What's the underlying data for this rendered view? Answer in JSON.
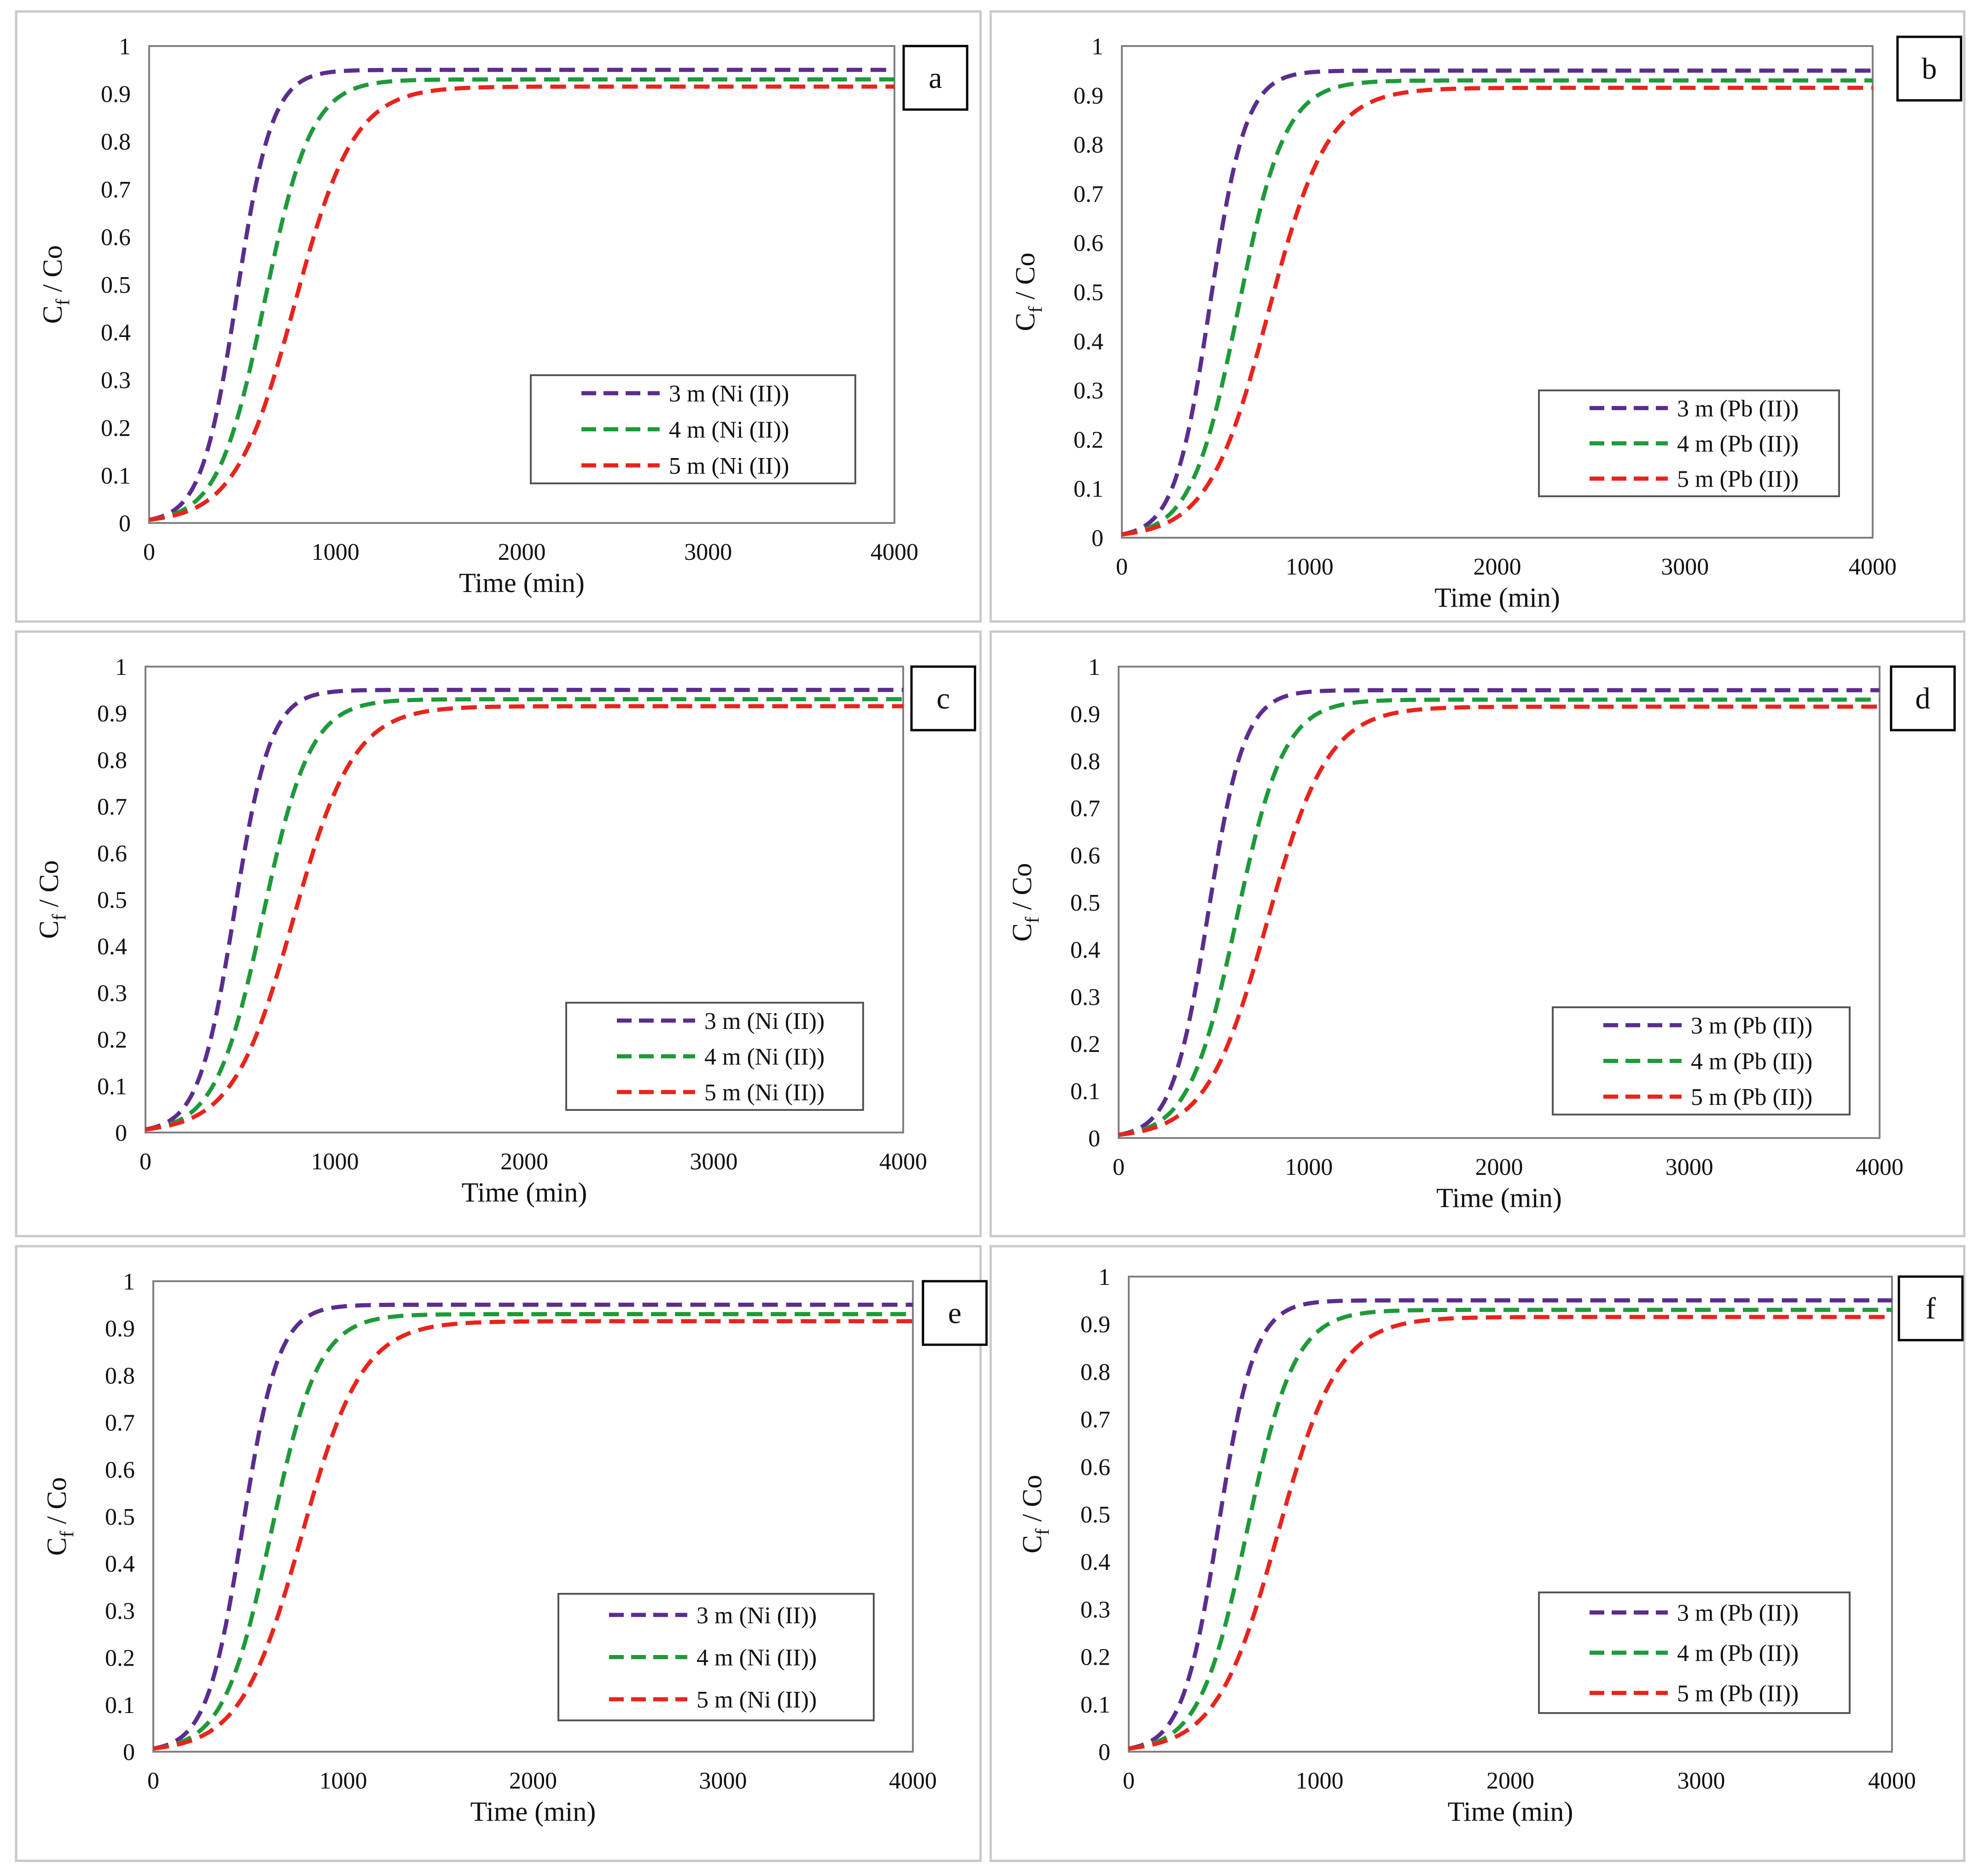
{
  "figure": {
    "description_visible": false
  },
  "chart_data": [
    {
      "panel": "a",
      "type": "line",
      "xlabel": "Time (min)",
      "ylabel": {
        "main": "C",
        "sub": "f",
        "rest": " / Co"
      },
      "xlim": [
        0,
        4000
      ],
      "ylim": [
        0,
        1
      ],
      "xticks": [
        "0",
        "1000",
        "2000",
        "3000",
        "4000"
      ],
      "yticks": [
        "0",
        "0.1",
        "0.2",
        "0.3",
        "0.4",
        "0.5",
        "0.6",
        "0.7",
        "0.8",
        "0.9",
        "1"
      ],
      "grid": false,
      "legend_position": "lower-right",
      "series": [
        {
          "name": "3 m (Ni (II))",
          "color": "#5b2d8e",
          "plateau": 0.95,
          "t50": 470,
          "width": 95,
          "x": [
            0,
            100,
            200,
            300,
            400,
            500,
            600,
            700,
            800,
            900,
            1000,
            1200,
            1500,
            2000,
            3000,
            4000
          ],
          "values": [
            0,
            0,
            0.01,
            0.15,
            0.37,
            0.57,
            0.73,
            0.84,
            0.91,
            0.93,
            0.94,
            0.95,
            0.95,
            0.95,
            0.95,
            0.95
          ]
        },
        {
          "name": "4 m (Ni (II))",
          "color": "#1e9a3a",
          "plateau": 0.93,
          "t50": 620,
          "width": 125,
          "x": [
            0,
            100,
            200,
            300,
            400,
            500,
            600,
            700,
            800,
            900,
            1000,
            1200,
            1500,
            2000,
            3000,
            4000
          ],
          "values": [
            0,
            0,
            0,
            0.05,
            0.15,
            0.31,
            0.48,
            0.62,
            0.73,
            0.81,
            0.86,
            0.91,
            0.93,
            0.93,
            0.93,
            0.93
          ]
        },
        {
          "name": "5 m (Ni (II))",
          "color": "#e8241c",
          "plateau": 0.915,
          "t50": 780,
          "width": 160,
          "x": [
            0,
            100,
            200,
            300,
            400,
            500,
            600,
            700,
            800,
            900,
            1000,
            1200,
            1500,
            2000,
            3000,
            4000
          ],
          "values": [
            0,
            0,
            0,
            0.01,
            0.05,
            0.13,
            0.26,
            0.41,
            0.55,
            0.66,
            0.74,
            0.84,
            0.9,
            0.915,
            0.915,
            0.915
          ]
        }
      ]
    },
    {
      "panel": "b",
      "type": "line",
      "xlabel": "Time (min)",
      "ylabel": {
        "main": "C",
        "sub": "f",
        "rest": " / Co"
      },
      "xlim": [
        0,
        4000
      ],
      "ylim": [
        0,
        1
      ],
      "xticks": [
        "0",
        "1000",
        "2000",
        "3000",
        "4000"
      ],
      "yticks": [
        "0",
        "0.1",
        "0.2",
        "0.3",
        "0.4",
        "0.5",
        "0.6",
        "0.7",
        "0.8",
        "0.9",
        "1"
      ],
      "grid": false,
      "legend_position": "lower-right",
      "series": [
        {
          "name": "3 m (Pb (II))",
          "color": "#5b2d8e",
          "plateau": 0.95,
          "t50": 470,
          "width": 95,
          "x": [
            0,
            100,
            200,
            300,
            400,
            500,
            600,
            700,
            800,
            900,
            1000,
            1200,
            1500,
            2000,
            3000,
            4000
          ],
          "values": [
            0,
            0,
            0.01,
            0.15,
            0.37,
            0.57,
            0.73,
            0.84,
            0.91,
            0.93,
            0.94,
            0.95,
            0.95,
            0.95,
            0.95,
            0.95
          ]
        },
        {
          "name": "4 m (Pb (II))",
          "color": "#1e9a3a",
          "plateau": 0.93,
          "t50": 620,
          "width": 125,
          "x": [
            0,
            100,
            200,
            300,
            400,
            500,
            600,
            700,
            800,
            900,
            1000,
            1200,
            1500,
            2000,
            3000,
            4000
          ],
          "values": [
            0,
            0,
            0,
            0.05,
            0.15,
            0.31,
            0.48,
            0.62,
            0.73,
            0.81,
            0.86,
            0.91,
            0.93,
            0.93,
            0.93,
            0.93
          ]
        },
        {
          "name": "5 m (Pb (II))",
          "color": "#e8241c",
          "plateau": 0.915,
          "t50": 780,
          "width": 160,
          "x": [
            0,
            100,
            200,
            300,
            400,
            500,
            600,
            700,
            800,
            900,
            1000,
            1200,
            1500,
            2000,
            3000,
            4000
          ],
          "values": [
            0,
            0,
            0,
            0.01,
            0.05,
            0.13,
            0.26,
            0.41,
            0.55,
            0.66,
            0.74,
            0.84,
            0.9,
            0.915,
            0.915,
            0.915
          ]
        }
      ]
    },
    {
      "panel": "c",
      "type": "line",
      "xlabel": "Time (min)",
      "ylabel": {
        "main": "C",
        "sub": "f",
        "rest": " / Co"
      },
      "xlim": [
        0,
        4000
      ],
      "ylim": [
        0,
        1
      ],
      "xticks": [
        "0",
        "1000",
        "2000",
        "3000",
        "4000"
      ],
      "yticks": [
        "0",
        "0.1",
        "0.2",
        "0.3",
        "0.4",
        "0.5",
        "0.6",
        "0.7",
        "0.8",
        "0.9",
        "1"
      ],
      "grid": false,
      "legend_position": "lower-right",
      "series": [
        {
          "name": "3 m (Ni (II))",
          "color": "#5b2d8e",
          "plateau": 0.95,
          "t50": 470,
          "width": 95,
          "x": [
            0,
            100,
            200,
            300,
            400,
            500,
            600,
            700,
            800,
            900,
            1000,
            1200,
            1500,
            2000,
            3000,
            4000
          ],
          "values": [
            0,
            0,
            0.01,
            0.15,
            0.37,
            0.57,
            0.73,
            0.84,
            0.91,
            0.93,
            0.94,
            0.95,
            0.95,
            0.95,
            0.95,
            0.95
          ]
        },
        {
          "name": "4 m (Ni (II))",
          "color": "#1e9a3a",
          "plateau": 0.93,
          "t50": 620,
          "width": 125,
          "x": [
            0,
            100,
            200,
            300,
            400,
            500,
            600,
            700,
            800,
            900,
            1000,
            1200,
            1500,
            2000,
            3000,
            4000
          ],
          "values": [
            0,
            0,
            0,
            0.05,
            0.15,
            0.31,
            0.48,
            0.62,
            0.73,
            0.81,
            0.86,
            0.91,
            0.93,
            0.93,
            0.93,
            0.93
          ]
        },
        {
          "name": "5 m (Ni (II))",
          "color": "#e8241c",
          "plateau": 0.915,
          "t50": 780,
          "width": 160,
          "x": [
            0,
            100,
            200,
            300,
            400,
            500,
            600,
            700,
            800,
            900,
            1000,
            1200,
            1500,
            2000,
            3000,
            4000
          ],
          "values": [
            0,
            0,
            0,
            0.01,
            0.05,
            0.13,
            0.26,
            0.41,
            0.55,
            0.66,
            0.74,
            0.84,
            0.9,
            0.915,
            0.915,
            0.915
          ]
        }
      ]
    },
    {
      "panel": "d",
      "type": "line",
      "xlabel": "Time (min)",
      "ylabel": {
        "main": "C",
        "sub": "f",
        "rest": " / Co"
      },
      "xlim": [
        0,
        4000
      ],
      "ylim": [
        0,
        1
      ],
      "xticks": [
        "0",
        "1000",
        "2000",
        "3000",
        "4000"
      ],
      "yticks": [
        "0",
        "0.1",
        "0.2",
        "0.3",
        "0.4",
        "0.5",
        "0.6",
        "0.7",
        "0.8",
        "0.9",
        "1"
      ],
      "grid": false,
      "legend_position": "lower-right",
      "series": [
        {
          "name": "3 m (Pb (II))",
          "color": "#5b2d8e",
          "plateau": 0.95,
          "t50": 470,
          "width": 95,
          "x": [
            0,
            100,
            200,
            300,
            400,
            500,
            600,
            700,
            800,
            900,
            1000,
            1200,
            1500,
            2000,
            3000,
            4000
          ],
          "values": [
            0,
            0,
            0.01,
            0.15,
            0.37,
            0.57,
            0.73,
            0.84,
            0.91,
            0.93,
            0.94,
            0.95,
            0.95,
            0.95,
            0.95,
            0.95
          ]
        },
        {
          "name": "4 m (Pb (II))",
          "color": "#1e9a3a",
          "plateau": 0.93,
          "t50": 620,
          "width": 125,
          "x": [
            0,
            100,
            200,
            300,
            400,
            500,
            600,
            700,
            800,
            900,
            1000,
            1200,
            1500,
            2000,
            3000,
            4000
          ],
          "values": [
            0,
            0,
            0,
            0.05,
            0.15,
            0.31,
            0.48,
            0.62,
            0.73,
            0.81,
            0.86,
            0.91,
            0.93,
            0.93,
            0.93,
            0.93
          ]
        },
        {
          "name": "5 m (Pb (II))",
          "color": "#e8241c",
          "plateau": 0.915,
          "t50": 780,
          "width": 160,
          "x": [
            0,
            100,
            200,
            300,
            400,
            500,
            600,
            700,
            800,
            900,
            1000,
            1200,
            1500,
            2000,
            3000,
            4000
          ],
          "values": [
            0,
            0,
            0,
            0.01,
            0.05,
            0.13,
            0.26,
            0.41,
            0.55,
            0.66,
            0.74,
            0.84,
            0.9,
            0.915,
            0.915,
            0.915
          ]
        }
      ]
    },
    {
      "panel": "e",
      "type": "line",
      "xlabel": "Time (min)",
      "ylabel": {
        "main": "C",
        "sub": "f",
        "rest": " / Co"
      },
      "xlim": [
        0,
        4000
      ],
      "ylim": [
        0,
        1
      ],
      "xticks": [
        "0",
        "1000",
        "2000",
        "3000",
        "4000"
      ],
      "yticks": [
        "0",
        "0.1",
        "0.2",
        "0.3",
        "0.4",
        "0.5",
        "0.6",
        "0.7",
        "0.8",
        "0.9",
        "1"
      ],
      "grid": false,
      "legend_position": "lower-right",
      "series": [
        {
          "name": "3 m (Ni (II))",
          "color": "#5b2d8e",
          "plateau": 0.95,
          "t50": 470,
          "width": 95,
          "x": [
            0,
            100,
            200,
            300,
            400,
            500,
            600,
            700,
            800,
            900,
            1000,
            1200,
            1500,
            2000,
            3000,
            4000
          ],
          "values": [
            0,
            0,
            0.01,
            0.15,
            0.37,
            0.57,
            0.73,
            0.84,
            0.91,
            0.93,
            0.94,
            0.95,
            0.95,
            0.95,
            0.95,
            0.95
          ]
        },
        {
          "name": "4 m (Ni (II))",
          "color": "#1e9a3a",
          "plateau": 0.93,
          "t50": 620,
          "width": 125,
          "x": [
            0,
            100,
            200,
            300,
            400,
            500,
            600,
            700,
            800,
            900,
            1000,
            1200,
            1500,
            2000,
            3000,
            4000
          ],
          "values": [
            0,
            0,
            0,
            0.05,
            0.15,
            0.31,
            0.48,
            0.62,
            0.73,
            0.81,
            0.86,
            0.91,
            0.93,
            0.93,
            0.93,
            0.93
          ]
        },
        {
          "name": "5 m (Ni (II))",
          "color": "#e8241c",
          "plateau": 0.915,
          "t50": 780,
          "width": 160,
          "x": [
            0,
            100,
            200,
            300,
            400,
            500,
            600,
            700,
            800,
            900,
            1000,
            1200,
            1500,
            2000,
            3000,
            4000
          ],
          "values": [
            0,
            0,
            0,
            0.01,
            0.05,
            0.13,
            0.26,
            0.41,
            0.55,
            0.66,
            0.74,
            0.84,
            0.9,
            0.915,
            0.915,
            0.915
          ]
        }
      ]
    },
    {
      "panel": "f",
      "type": "line",
      "xlabel": "Time (min)",
      "ylabel": {
        "main": "C",
        "sub": "f",
        "rest": " / Co"
      },
      "xlim": [
        0,
        4000
      ],
      "ylim": [
        0,
        1
      ],
      "xticks": [
        "0",
        "1000",
        "2000",
        "3000",
        "4000"
      ],
      "yticks": [
        "0",
        "0.1",
        "0.2",
        "0.3",
        "0.4",
        "0.5",
        "0.6",
        "0.7",
        "0.8",
        "0.9",
        "1"
      ],
      "grid": false,
      "legend_position": "lower-right",
      "series": [
        {
          "name": "3 m (Pb (II))",
          "color": "#5b2d8e",
          "plateau": 0.95,
          "t50": 470,
          "width": 95,
          "x": [
            0,
            100,
            200,
            300,
            400,
            500,
            600,
            700,
            800,
            900,
            1000,
            1200,
            1500,
            2000,
            3000,
            4000
          ],
          "values": [
            0,
            0,
            0.01,
            0.15,
            0.37,
            0.57,
            0.73,
            0.84,
            0.91,
            0.93,
            0.94,
            0.95,
            0.95,
            0.95,
            0.95,
            0.95
          ]
        },
        {
          "name": "4 m (Pb (II))",
          "color": "#1e9a3a",
          "plateau": 0.93,
          "t50": 620,
          "width": 125,
          "x": [
            0,
            100,
            200,
            300,
            400,
            500,
            600,
            700,
            800,
            900,
            1000,
            1200,
            1500,
            2000,
            3000,
            4000
          ],
          "values": [
            0,
            0,
            0,
            0.05,
            0.15,
            0.31,
            0.48,
            0.62,
            0.73,
            0.81,
            0.86,
            0.91,
            0.93,
            0.93,
            0.93,
            0.93
          ]
        },
        {
          "name": "5 m (Pb (II))",
          "color": "#e8241c",
          "plateau": 0.915,
          "t50": 780,
          "width": 160,
          "x": [
            0,
            100,
            200,
            300,
            400,
            500,
            600,
            700,
            800,
            900,
            1000,
            1200,
            1500,
            2000,
            3000,
            4000
          ],
          "values": [
            0,
            0,
            0,
            0.01,
            0.05,
            0.13,
            0.26,
            0.41,
            0.55,
            0.66,
            0.74,
            0.84,
            0.9,
            0.915,
            0.915,
            0.915
          ]
        }
      ]
    }
  ]
}
